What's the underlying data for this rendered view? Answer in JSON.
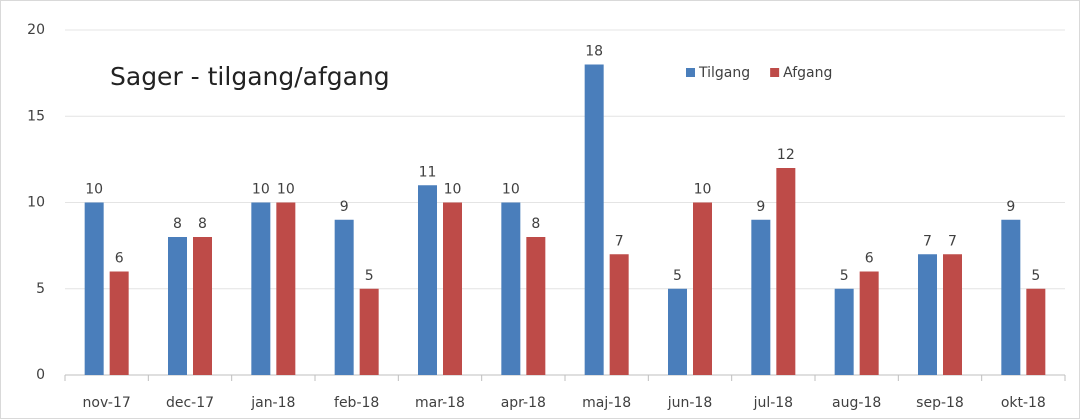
{
  "chart_data": {
    "type": "bar",
    "title": "Sager - tilgang/afgang",
    "categories": [
      "nov-17",
      "dec-17",
      "jan-18",
      "feb-18",
      "mar-18",
      "apr-18",
      "maj-18",
      "jun-18",
      "jul-18",
      "aug-18",
      "sep-18",
      "okt-18"
    ],
    "series": [
      {
        "name": "Tilgang",
        "color": "#4a7ebb",
        "values": [
          10,
          8,
          10,
          9,
          11,
          10,
          18,
          5,
          9,
          5,
          7,
          9
        ]
      },
      {
        "name": "Afgang",
        "color": "#be4b48",
        "values": [
          6,
          8,
          10,
          5,
          10,
          8,
          7,
          10,
          12,
          6,
          7,
          5
        ]
      }
    ],
    "ylim": [
      0,
      20
    ],
    "yticks": [
      0,
      5,
      10,
      15,
      20
    ],
    "grid": true,
    "legend": "top"
  }
}
